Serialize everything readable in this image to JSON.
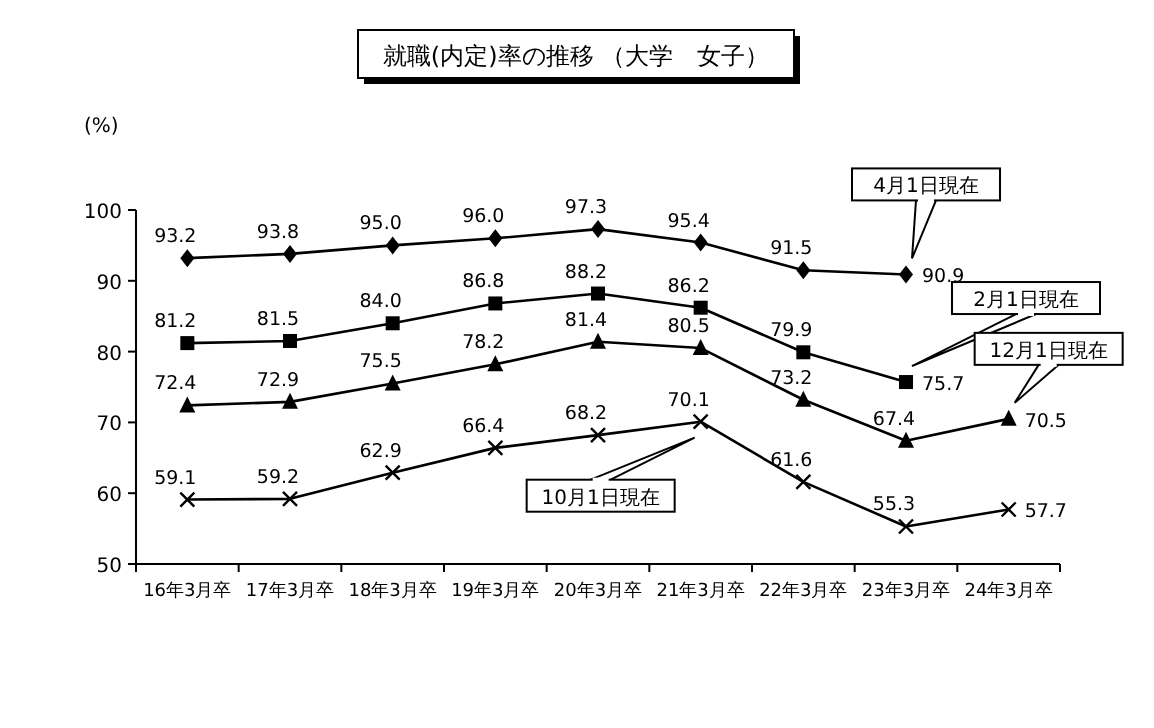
{
  "chart_data": {
    "type": "line",
    "title": "就職(内定)率の推移 （大学　女子）",
    "ylabel": "(%)",
    "categories": [
      "16年3月卒",
      "17年3月卒",
      "18年3月卒",
      "19年3月卒",
      "20年3月卒",
      "21年3月卒",
      "22年3月卒",
      "23年3月卒",
      "24年3月卒"
    ],
    "series": [
      {
        "name": "4月1日現在",
        "color": "#000000",
        "marker": "diamond",
        "values": [
          93.2,
          93.8,
          95.0,
          96.0,
          97.3,
          95.4,
          91.5,
          90.9,
          null
        ],
        "value_labels": [
          "93.2",
          "93.8",
          "95.0",
          "96.0",
          "97.3",
          "95.4",
          "91.5",
          "90.9",
          null
        ]
      },
      {
        "name": "2月1日現在",
        "color": "#000000",
        "marker": "square",
        "values": [
          81.2,
          81.5,
          84.0,
          86.8,
          88.2,
          86.2,
          79.9,
          75.7,
          null
        ],
        "value_labels": [
          "81.2",
          "81.5",
          "84.0",
          "86.8",
          "88.2",
          "86.2",
          "79.9",
          "75.7",
          null
        ]
      },
      {
        "name": "12月1日現在",
        "color": "#000000",
        "marker": "triangle",
        "values": [
          72.4,
          72.9,
          75.5,
          78.2,
          81.4,
          80.5,
          73.2,
          67.4,
          70.5
        ],
        "value_labels": [
          "72.4",
          "72.9",
          "75.5",
          "78.2",
          "81.4",
          "80.5",
          "73.2",
          "67.4",
          "70.5"
        ]
      },
      {
        "name": "10月1日現在",
        "color": "#000000",
        "marker": "cross",
        "values": [
          59.1,
          59.2,
          62.9,
          66.4,
          68.2,
          70.1,
          61.6,
          55.3,
          57.7
        ],
        "value_labels": [
          "59.1",
          "59.2",
          "62.9",
          "66.4",
          "68.2",
          "70.1",
          "61.6",
          "55.3",
          "57.7"
        ]
      }
    ],
    "ylim": [
      50,
      100
    ],
    "yticks": [
      50,
      60,
      70,
      80,
      90,
      100
    ],
    "legend": false,
    "grid": false
  }
}
